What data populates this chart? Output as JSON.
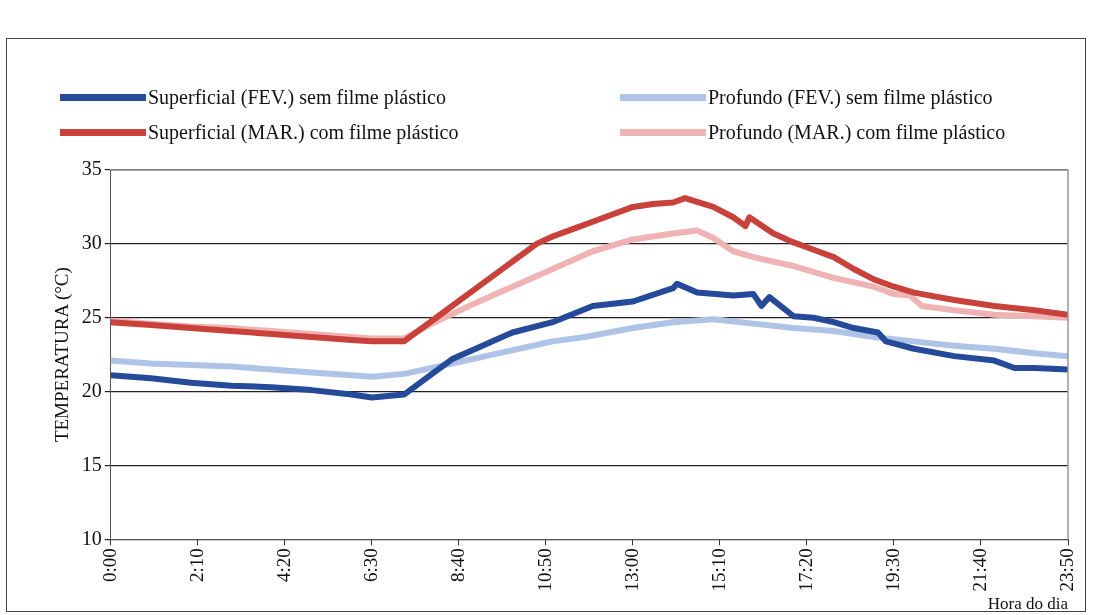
{
  "chart_data": {
    "type": "line",
    "xlabel": "Hora do dia",
    "ylabel": "TEMPERATURA (°C)",
    "xlim": [
      0,
      23.8333
    ],
    "xticks": [
      {
        "value": 0,
        "label": "0:00"
      },
      {
        "value": 2.1667,
        "label": "2:10"
      },
      {
        "value": 4.3333,
        "label": "4:20"
      },
      {
        "value": 6.5,
        "label": "6:30"
      },
      {
        "value": 8.6667,
        "label": "8:40"
      },
      {
        "value": 10.8333,
        "label": "10:50"
      },
      {
        "value": 13,
        "label": "13:00"
      },
      {
        "value": 15.1667,
        "label": "15:10"
      },
      {
        "value": 17.3333,
        "label": "17:20"
      },
      {
        "value": 19.5,
        "label": "19:30"
      },
      {
        "value": 21.6667,
        "label": "21:40"
      },
      {
        "value": 23.8333,
        "label": "23:50"
      }
    ],
    "ylim": [
      10,
      35
    ],
    "yticks": [
      10,
      15,
      20,
      25,
      30,
      35
    ],
    "grid": "y",
    "legend": "top",
    "marker": "none",
    "line_style": "solid",
    "series": [
      {
        "name": "Superficial (FEV.) sem filme plástico",
        "color": "#254a9a",
        "x": [
          0,
          1,
          2,
          3,
          4,
          5,
          6,
          6.5,
          7.3,
          8,
          8.5,
          9,
          10,
          11,
          12,
          13,
          14,
          14.1,
          14.6,
          15.5,
          16,
          16.2,
          16.4,
          17,
          17.5,
          18,
          18.5,
          19.1,
          19.3,
          20,
          21,
          22,
          22.5,
          23,
          23.8333
        ],
        "values": [
          21.1,
          20.9,
          20.6,
          20.4,
          20.3,
          20.1,
          19.8,
          19.6,
          19.8,
          21.2,
          22.2,
          22.8,
          24.0,
          24.7,
          25.8,
          26.1,
          27.0,
          27.3,
          26.7,
          26.5,
          26.6,
          25.8,
          26.4,
          25.1,
          25.0,
          24.7,
          24.3,
          24.0,
          23.4,
          22.9,
          22.4,
          22.1,
          21.6,
          21.6,
          21.5
        ]
      },
      {
        "name": "Profundo (FEV.) sem filme plástico",
        "color": "#aec3e6",
        "x": [
          0,
          1,
          2,
          3,
          4,
          5,
          6,
          6.5,
          7.3,
          8.5,
          10,
          11,
          11.8,
          13,
          14,
          15,
          16,
          17,
          18,
          19,
          20,
          21,
          22,
          23,
          23.8333
        ],
        "values": [
          22.1,
          21.9,
          21.8,
          21.7,
          21.5,
          21.3,
          21.1,
          21.0,
          21.2,
          21.9,
          22.8,
          23.4,
          23.7,
          24.3,
          24.7,
          24.9,
          24.6,
          24.3,
          24.1,
          23.7,
          23.4,
          23.1,
          22.9,
          22.6,
          22.4
        ]
      },
      {
        "name": "Superficial (MAR.) com filme plástico",
        "color": "#c8413a",
        "x": [
          0,
          1,
          2,
          3,
          4,
          5,
          6,
          6.5,
          7.3,
          8.1,
          9,
          10,
          10.6,
          11,
          11.5,
          12,
          13,
          13.5,
          14,
          14.3,
          15,
          15.5,
          15.8,
          15.9,
          16.5,
          17,
          17.5,
          18,
          18.5,
          19,
          19.5,
          20,
          21,
          22,
          23,
          23.8333
        ],
        "values": [
          24.7,
          24.5,
          24.3,
          24.1,
          23.9,
          23.7,
          23.5,
          23.4,
          23.4,
          25.0,
          26.8,
          28.8,
          30.0,
          30.5,
          31.0,
          31.5,
          32.5,
          32.7,
          32.8,
          33.1,
          32.5,
          31.8,
          31.2,
          31.8,
          30.7,
          30.1,
          29.6,
          29.1,
          28.3,
          27.6,
          27.1,
          26.7,
          26.2,
          25.8,
          25.5,
          25.2
        ]
      },
      {
        "name": "Profundo (MAR.) com filme plástico",
        "color": "#f0b3b3",
        "x": [
          0,
          1,
          2,
          3,
          4,
          5,
          6,
          6.5,
          7.3,
          8,
          9,
          10,
          11,
          12,
          13,
          14,
          14.6,
          15,
          15.5,
          16,
          17,
          18,
          19,
          19.5,
          19.9,
          20.2,
          21,
          22,
          23,
          23.8333
        ],
        "values": [
          24.8,
          24.6,
          24.4,
          24.3,
          24.1,
          23.9,
          23.7,
          23.6,
          23.6,
          24.6,
          25.9,
          27.1,
          28.3,
          29.5,
          30.3,
          30.7,
          30.9,
          30.4,
          29.5,
          29.1,
          28.5,
          27.7,
          27.1,
          26.6,
          26.5,
          25.8,
          25.5,
          25.2,
          25.1,
          25.0
        ]
      }
    ]
  }
}
